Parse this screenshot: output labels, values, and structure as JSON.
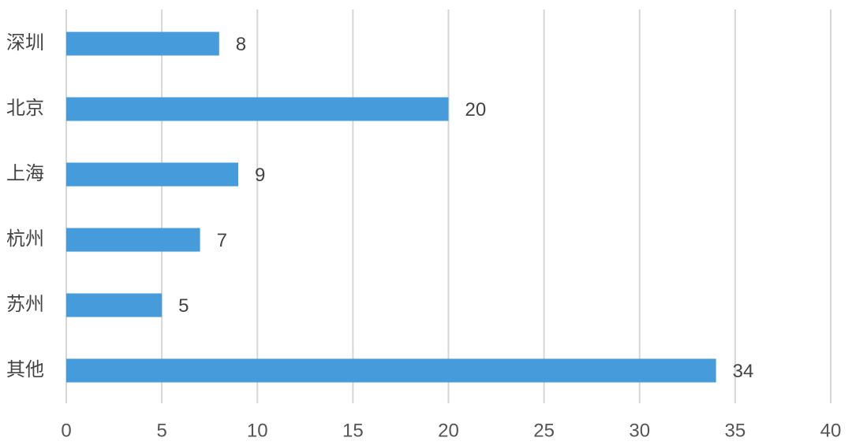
{
  "chart_data": {
    "type": "barh",
    "categories": [
      "深圳",
      "北京",
      "上海",
      "杭州",
      "苏州",
      "其他"
    ],
    "values": [
      8,
      20,
      9,
      7,
      5,
      34
    ],
    "color": "#469bdb",
    "xlim": [
      0,
      40
    ],
    "xticks": [
      0,
      5,
      10,
      15,
      20,
      25,
      30,
      35,
      40
    ],
    "grid": true
  }
}
